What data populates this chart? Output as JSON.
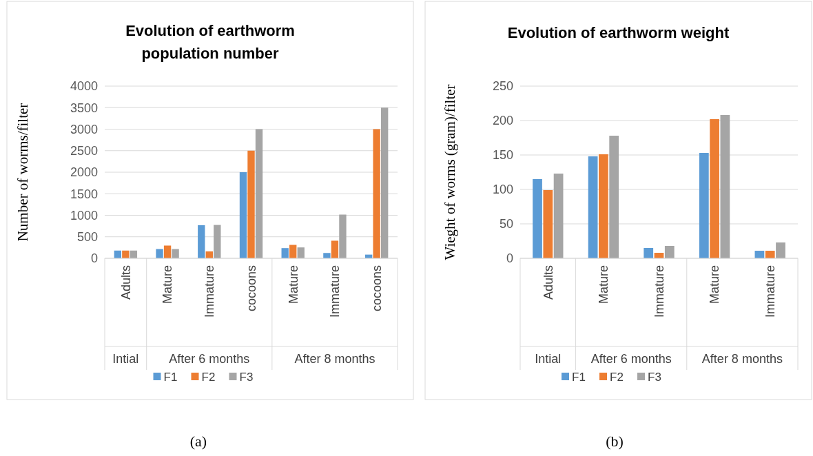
{
  "chart_data": [
    {
      "type": "bar",
      "title": "Evolution of earthworm population number",
      "ylabel": "Number of worms/filter",
      "categories": [
        "Adults",
        "Mature",
        "Immature",
        "cocoons",
        "Mature",
        "Immature",
        "cocoons"
      ],
      "series": [
        {
          "name": "F1",
          "color": "#5b9bd5",
          "values": [
            180,
            215,
            770,
            2000,
            237,
            124,
            86
          ]
        },
        {
          "name": "F2",
          "color": "#ed7d31",
          "values": [
            180,
            296,
            160,
            2500,
            312,
            409,
            3000
          ]
        },
        {
          "name": "F3",
          "color": "#a5a5a5",
          "values": [
            180,
            215,
            775,
            3000,
            253,
            1016,
            3500
          ]
        }
      ],
      "ylim": [
        0,
        4000
      ],
      "yticks": [
        0,
        500,
        1000,
        1500,
        2000,
        2500,
        3000,
        3500,
        4000
      ],
      "grid": "y",
      "legend": "bottom",
      "annotations": [
        "Intial",
        "After 6 months",
        "After 8 months",
        "(a)"
      ]
    },
    {
      "type": "bar",
      "title": "Evolution of earthworm weight",
      "ylabel": "Wieght of worms (gram)/filter",
      "categories": [
        "Adults",
        "Mature",
        "Immature",
        "Mature",
        "Immature"
      ],
      "series": [
        {
          "name": "F1",
          "color": "#5b9bd5",
          "values": [
            115,
            148,
            15,
            153,
            11
          ]
        },
        {
          "name": "F2",
          "color": "#ed7d31",
          "values": [
            99,
            151,
            8,
            202,
            11
          ]
        },
        {
          "name": "F3",
          "color": "#a5a5a5",
          "values": [
            123,
            178,
            18,
            208,
            23
          ]
        }
      ],
      "ylim": [
        0,
        250
      ],
      "yticks": [
        0,
        50,
        100,
        150,
        200,
        250
      ],
      "grid": "y",
      "legend": "bottom",
      "annotations": [
        "Intial",
        "After 6 months",
        "After 8 months",
        "(b)"
      ]
    }
  ]
}
